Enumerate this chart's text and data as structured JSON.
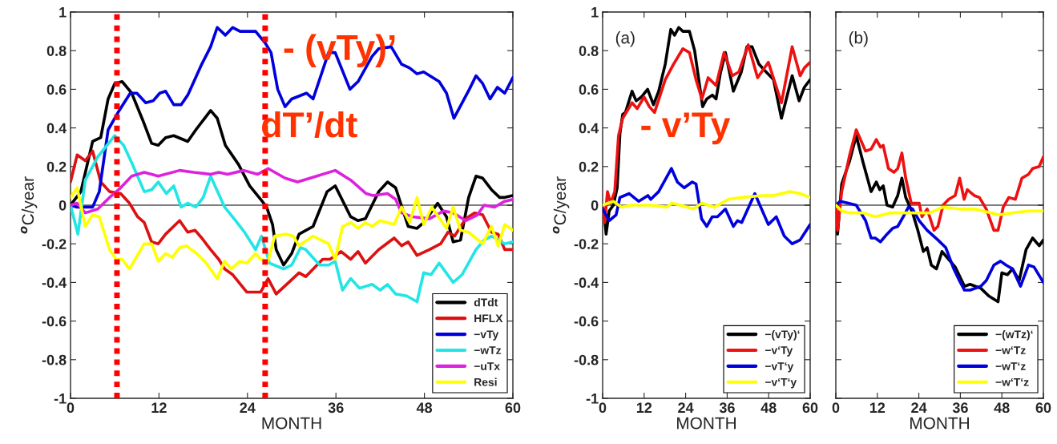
{
  "chart_data": [
    {
      "type": "line",
      "xlabel": "MONTH",
      "ylabel": "$^{o}$C/year",
      "xlim": [
        0,
        60
      ],
      "xticks": [
        0,
        12,
        24,
        36,
        48,
        60
      ],
      "ylim": [
        -1,
        1
      ],
      "yticks": [
        -1,
        -0.8,
        -0.6,
        -0.4,
        -0.2,
        0,
        0.2,
        0.4,
        0.6,
        0.8,
        1
      ],
      "legend": "bottom right",
      "grid": false,
      "ref_lines": [
        {
          "axis": "y",
          "value": 0,
          "color": "#000000",
          "line_style": "solid"
        },
        {
          "axis": "x",
          "value": 6.3,
          "color": "#ff0000",
          "line_style": "dotted"
        },
        {
          "axis": "x",
          "value": 26.4,
          "color": "#ff0000",
          "line_style": "dotted"
        }
      ],
      "annotations": [
        "- (vTy)’",
        "dT’/dt"
      ],
      "series": [
        {
          "name": "dTdt",
          "color": "#000000",
          "x": [
            0,
            1.4,
            3,
            4.1,
            5.1,
            6,
            7,
            8.3,
            9.8,
            11,
            11.9,
            12.9,
            14,
            15.9,
            17,
            19,
            19.9,
            21,
            22.8,
            24.3,
            25.8,
            26.6,
            27.4,
            27.9,
            28.9,
            30,
            31,
            32.9,
            34.8,
            35.9,
            38,
            39,
            40,
            41.8,
            43,
            44.1,
            45.8,
            47,
            47.9,
            49.8,
            51,
            51.9,
            52.9,
            54,
            55,
            55.9,
            57.1,
            58.2,
            58.9,
            60
          ],
          "values": [
            0,
            0.07,
            0.33,
            0.35,
            0.55,
            0.63,
            0.64,
            0.58,
            0.44,
            0.32,
            0.31,
            0.35,
            0.36,
            0.33,
            0.39,
            0.49,
            0.45,
            0.31,
            0.21,
            0.1,
            0.03,
            -0.01,
            -0.1,
            -0.23,
            -0.31,
            -0.25,
            -0.15,
            -0.11,
            0.07,
            0.1,
            -0.06,
            -0.08,
            -0.07,
            0.07,
            0.12,
            0.09,
            -0.11,
            -0.12,
            -0.09,
            0.01,
            -0.06,
            -0.19,
            -0.18,
            0.04,
            0.15,
            0.14,
            0.08,
            0.04,
            0.04,
            0.05
          ]
        },
        {
          "name": "HFLX",
          "color": "#dd1111",
          "x": [
            0,
            0.9,
            2,
            3,
            4.1,
            5.3,
            6.8,
            8,
            9.1,
            10,
            11,
            11.9,
            12.9,
            14.8,
            15.9,
            16.9,
            17.8,
            19,
            20.1,
            20.9,
            22,
            23.9,
            25.8,
            26.8,
            27.9,
            29.6,
            31,
            31.9,
            34.2,
            35.2,
            36.7,
            38,
            39,
            40,
            41.8,
            43.9,
            44.9,
            45.8,
            47,
            48.7,
            50.2,
            51.2,
            52.1,
            53.6,
            54.8,
            55.9,
            57.1,
            58,
            58.9,
            60
          ],
          "values": [
            0.12,
            0.26,
            0.23,
            0.28,
            0.12,
            0.07,
            0.06,
            0.01,
            -0.06,
            -0.09,
            -0.19,
            -0.2,
            -0.15,
            -0.08,
            -0.14,
            -0.13,
            -0.17,
            -0.23,
            -0.28,
            -0.33,
            -0.36,
            -0.45,
            -0.45,
            -0.38,
            -0.46,
            -0.4,
            -0.35,
            -0.37,
            -0.28,
            -0.28,
            -0.24,
            -0.28,
            -0.24,
            -0.3,
            -0.23,
            -0.17,
            -0.21,
            -0.19,
            -0.26,
            -0.23,
            -0.2,
            -0.14,
            -0.16,
            -0.07,
            -0.04,
            -0.05,
            -0.14,
            -0.15,
            -0.23,
            -0.23
          ]
        },
        {
          "name": "−vTy",
          "color": "#0000dd",
          "x": [
            0,
            0.9,
            2,
            3,
            3.9,
            5.1,
            6.6,
            8.1,
            9,
            10.2,
            11.2,
            12.1,
            12.9,
            14,
            15,
            15.9,
            17.8,
            19,
            19.9,
            21,
            22,
            23,
            25.1,
            26.4,
            27.2,
            28.1,
            29.1,
            30,
            32,
            32.9,
            35,
            35.9,
            37.9,
            39,
            40.9,
            41.8,
            43.5,
            44.9,
            46,
            47,
            47.9,
            50,
            51,
            52,
            54.1,
            55,
            55.9,
            56.9,
            57.9,
            58.9,
            60
          ],
          "values": [
            0,
            -0.01,
            -0.01,
            -0.01,
            0.07,
            0.39,
            0.49,
            0.58,
            0.58,
            0.53,
            0.54,
            0.58,
            0.59,
            0.52,
            0.52,
            0.57,
            0.73,
            0.82,
            0.92,
            0.88,
            0.92,
            0.9,
            0.9,
            0.84,
            0.79,
            0.6,
            0.51,
            0.55,
            0.58,
            0.55,
            0.79,
            0.79,
            0.6,
            0.64,
            0.77,
            0.81,
            0.82,
            0.73,
            0.71,
            0.68,
            0.69,
            0.64,
            0.58,
            0.45,
            0.6,
            0.67,
            0.63,
            0.55,
            0.61,
            0.58,
            0.66
          ]
        },
        {
          "name": "−wTz",
          "color": "#22e5e5",
          "x": [
            0,
            1,
            2,
            3.7,
            6,
            7.2,
            8.3,
            10,
            11,
            11.9,
            13,
            14,
            15,
            15.9,
            17,
            18,
            19,
            20.9,
            22.4,
            23.6,
            25.1,
            25.9,
            27,
            28.9,
            30,
            31.2,
            31.9,
            33.8,
            35,
            35.9,
            36.9,
            38,
            39.2,
            40.9,
            42,
            43,
            44.1,
            45.6,
            47,
            47.9,
            48.9,
            50,
            51.9,
            53.1,
            55,
            56.1,
            57.1,
            58.9,
            60
          ],
          "values": [
            0,
            -0.15,
            0.13,
            0.25,
            0.36,
            0.31,
            0.22,
            0.07,
            0.08,
            0.12,
            0.06,
            0.1,
            -0.01,
            0.01,
            -0.01,
            0.04,
            0.15,
            -0.01,
            -0.08,
            -0.14,
            -0.23,
            -0.16,
            -0.3,
            -0.33,
            -0.31,
            -0.22,
            -0.23,
            -0.31,
            -0.31,
            -0.29,
            -0.44,
            -0.38,
            -0.43,
            -0.41,
            -0.44,
            -0.41,
            -0.46,
            -0.47,
            -0.5,
            -0.35,
            -0.36,
            -0.3,
            -0.4,
            -0.36,
            -0.23,
            -0.18,
            -0.16,
            -0.2,
            -0.19
          ]
        },
        {
          "name": "−uTx",
          "color": "#dd22dd",
          "x": [
            0,
            0.9,
            2,
            3.7,
            5.3,
            6.8,
            8.3,
            10,
            11.9,
            14.8,
            16.7,
            19,
            20.1,
            21.3,
            23.5,
            25.4,
            26.8,
            29.1,
            30.8,
            33.4,
            35.9,
            38,
            40.1,
            41,
            43,
            44.1,
            44.9,
            46.4,
            48.7,
            50.6,
            51.9,
            53.6,
            55.2,
            56.1,
            57.5,
            58.9,
            60
          ],
          "values": [
            0,
            0.01,
            -0.04,
            -0.02,
            0.04,
            0.09,
            0.15,
            0.17,
            0.15,
            0.18,
            0.17,
            0.16,
            0.17,
            0.16,
            0.18,
            0.16,
            0.19,
            0.14,
            0.12,
            0.15,
            0.18,
            0.13,
            0.06,
            0.05,
            0.06,
            0.03,
            -0.04,
            -0.06,
            -0.07,
            -0.03,
            -0.04,
            -0.08,
            -0.05,
            0,
            -0.01,
            0.02,
            0.03
          ]
        },
        {
          "name": "Resi",
          "color": "#ffff00",
          "x": [
            0,
            0.9,
            2,
            3,
            3.9,
            5.3,
            6.2,
            7,
            8,
            10,
            11,
            11.9,
            12.9,
            13.8,
            14.8,
            15.7,
            17.1,
            18.2,
            19.9,
            20.9,
            21.8,
            23,
            23.9,
            25.1,
            25.8,
            26.8,
            27.7,
            29.3,
            30.2,
            31,
            32.9,
            35,
            35.9,
            36.9,
            38,
            39,
            40,
            40.9,
            42,
            43.9,
            44.9,
            46,
            47,
            47.9,
            49,
            51,
            51.9,
            52.9,
            54,
            55.9,
            57.1,
            58,
            58.9,
            60
          ],
          "values": [
            0.04,
            0.09,
            -0.11,
            -0.05,
            -0.06,
            -0.23,
            -0.28,
            -0.28,
            -0.33,
            -0.2,
            -0.2,
            -0.29,
            -0.25,
            -0.27,
            -0.22,
            -0.21,
            -0.25,
            -0.29,
            -0.38,
            -0.29,
            -0.33,
            -0.29,
            -0.3,
            -0.25,
            -0.28,
            -0.29,
            -0.16,
            -0.15,
            -0.16,
            -0.21,
            -0.16,
            -0.2,
            -0.28,
            -0.11,
            -0.09,
            -0.12,
            -0.09,
            -0.11,
            -0.08,
            -0.1,
            -0.01,
            -0.09,
            0.04,
            -0.1,
            -0.01,
            -0.12,
            -0.01,
            -0.13,
            -0.14,
            -0.2,
            -0.11,
            -0.21,
            -0.1,
            -0.13
          ]
        }
      ]
    },
    {
      "type": "line",
      "xlabel": "MONTH",
      "ylabel": "$^{o}$C/year",
      "xlim": [
        0,
        60
      ],
      "xticks": [
        0,
        12,
        24,
        36,
        48,
        60
      ],
      "ylim": [
        -1,
        1
      ],
      "yticks": [
        -1,
        -0.8,
        -0.6,
        -0.4,
        -0.2,
        0,
        0.2,
        0.4,
        0.6,
        0.8,
        1
      ],
      "legend": "bottom right",
      "grid": false,
      "ref_lines": [
        {
          "axis": "y",
          "value": 0,
          "color": "#000000",
          "line_style": "solid"
        }
      ],
      "annotations": [
        "(a)",
        "- v’Ty"
      ],
      "series": [
        {
          "name": "−(vTy)‘",
          "color": "#000000",
          "x": [
            0,
            0.6,
            1,
            1.9,
            3.1,
            4.2,
            5,
            5.8,
            6.6,
            8.5,
            9.7,
            11.2,
            13,
            14.7,
            16.2,
            18.1,
            19.7,
            20.8,
            22,
            23.2,
            25.1,
            26.6,
            28.9,
            30.1,
            31.7,
            32.8,
            34,
            35.5,
            37.8,
            40.1,
            41.7,
            43.2,
            45.2,
            46.7,
            49.4,
            51.7,
            54.8,
            56.8,
            58.3,
            60
          ],
          "values": [
            0,
            -0.07,
            -0.15,
            -0.03,
            0,
            0.09,
            0.37,
            0.47,
            0.48,
            0.59,
            0.54,
            0.56,
            0.6,
            0.52,
            0.59,
            0.73,
            0.91,
            0.88,
            0.92,
            0.9,
            0.9,
            0.8,
            0.51,
            0.55,
            0.57,
            0.55,
            0.68,
            0.79,
            0.59,
            0.69,
            0.82,
            0.82,
            0.73,
            0.7,
            0.65,
            0.45,
            0.67,
            0.54,
            0.61,
            0.65
          ]
        },
        {
          "name": "−v‘Ty",
          "color": "#ee1111",
          "x": [
            0,
            0.6,
            1.4,
            2.3,
            3.5,
            4.6,
            5.8,
            8.5,
            10,
            12,
            13.5,
            15,
            18.1,
            20.5,
            23.2,
            25.1,
            27,
            28.7,
            30.5,
            32.8,
            35.1,
            37.5,
            39.4,
            42.1,
            44.8,
            47.9,
            51.7,
            54.8,
            57.1,
            58.3,
            60
          ],
          "values": [
            0,
            -0.09,
            0.07,
            0.01,
            0.07,
            0.36,
            0.45,
            0.53,
            0.5,
            0.56,
            0.51,
            0.48,
            0.65,
            0.73,
            0.81,
            0.79,
            0.65,
            0.55,
            0.66,
            0.62,
            0.79,
            0.67,
            0.69,
            0.83,
            0.66,
            0.74,
            0.53,
            0.82,
            0.67,
            0.71,
            0.74
          ]
        },
        {
          "name": "−vT‘y",
          "color": "#0000dd",
          "x": [
            0,
            1.9,
            3.9,
            5,
            7.7,
            10.4,
            13.1,
            13.9,
            16.2,
            19.9,
            21.6,
            23.6,
            25.9,
            27,
            28.6,
            30.1,
            31.7,
            33.2,
            35.5,
            37.8,
            39,
            40.2,
            44,
            47.9,
            50.2,
            52.5,
            54.8,
            57.1,
            60
          ],
          "values": [
            -0.02,
            -0.08,
            -0.05,
            0.04,
            0.06,
            0.02,
            0.05,
            0.03,
            0.07,
            0.19,
            0.12,
            0.09,
            0.12,
            0.11,
            -0.07,
            -0.11,
            -0.06,
            -0.06,
            -0.02,
            -0.11,
            -0.08,
            -0.09,
            0.06,
            -0.1,
            -0.06,
            -0.16,
            -0.2,
            -0.18,
            -0.1
          ]
        },
        {
          "name": "−v‘T‘y",
          "color": "#ffff00",
          "x": [
            0,
            3.1,
            5.4,
            8.5,
            13.9,
            18.5,
            20.1,
            22.4,
            26.3,
            28.6,
            32.4,
            36.3,
            40.2,
            46.3,
            49.4,
            54.1,
            57.1,
            60
          ],
          "values": [
            0,
            0.02,
            -0.01,
            0,
            0,
            -0.01,
            0.01,
            0,
            -0.02,
            0.01,
            -0.01,
            0.03,
            0.04,
            0.05,
            0.05,
            0.07,
            0.06,
            0.04
          ]
        }
      ]
    },
    {
      "type": "line",
      "xlabel": "MONTH",
      "xlim": [
        0,
        60
      ],
      "xticks": [
        0,
        12,
        24,
        36,
        48,
        60
      ],
      "ylim": [
        -1,
        1
      ],
      "yticks": [
        -1,
        -0.8,
        -0.6,
        -0.4,
        -0.2,
        0,
        0.2,
        0.4,
        0.6,
        0.8,
        1
      ],
      "legend": "bottom right",
      "grid": false,
      "tick_labels": "x",
      "ref_lines": [
        {
          "axis": "y",
          "value": 0,
          "color": "#000000",
          "line_style": "solid"
        }
      ],
      "annotations": [
        "(b)"
      ],
      "series": [
        {
          "name": "−(wTz)‘",
          "color": "#000000",
          "x": [
            0,
            0.5,
            1.7,
            4,
            5.9,
            7.9,
            10.2,
            11.7,
            12.7,
            13.7,
            14.8,
            16.4,
            17.9,
            19.1,
            20.2,
            22.2,
            23.7,
            25.3,
            26.4,
            27.6,
            29.1,
            30.7,
            32.6,
            34.5,
            37.2,
            38.8,
            41.9,
            44.2,
            46.9,
            48,
            49.6,
            51.1,
            53,
            55,
            56.9,
            58.8,
            60
          ],
          "values": [
            0,
            -0.15,
            0.11,
            0.23,
            0.36,
            0.22,
            0.07,
            0.12,
            0.08,
            0.1,
            0,
            -0.01,
            0.05,
            0.14,
            0.04,
            -0.04,
            -0.13,
            -0.24,
            -0.22,
            -0.31,
            -0.33,
            -0.24,
            -0.28,
            -0.32,
            -0.42,
            -0.41,
            -0.43,
            -0.47,
            -0.5,
            -0.35,
            -0.36,
            -0.33,
            -0.39,
            -0.23,
            -0.17,
            -0.21,
            -0.18
          ]
        },
        {
          "name": "−w‘Tz",
          "color": "#ee1111",
          "x": [
            0,
            0.5,
            1.7,
            4,
            5.9,
            8.6,
            10.2,
            11.7,
            12.9,
            13.7,
            15.2,
            16.8,
            17.9,
            19.1,
            20.2,
            21.8,
            24.1,
            24.9,
            26.4,
            28.4,
            29.5,
            31,
            32.6,
            34.5,
            35.8,
            37.1,
            38,
            40,
            41.5,
            43.5,
            45.7,
            46.9,
            48.4,
            50,
            51.9,
            53.8,
            55.7,
            56.9,
            58.8,
            60
          ],
          "values": [
            0,
            -0.13,
            0.07,
            0.26,
            0.39,
            0.28,
            0.29,
            0.34,
            0.3,
            0.31,
            0.19,
            0.17,
            0.19,
            0.27,
            0.14,
            0.01,
            0.01,
            -0.06,
            -0.02,
            -0.13,
            -0.11,
            0,
            0.03,
            0.05,
            0.14,
            0.03,
            0.08,
            0.05,
            0.04,
            -0.02,
            -0.13,
            -0.13,
            -0.01,
            0.04,
            0.03,
            0.14,
            0.16,
            0.19,
            0.2,
            0.25
          ]
        },
        {
          "name": "−wT‘z",
          "color": "#0000dd",
          "x": [
            0,
            1.3,
            3.6,
            5.9,
            8.6,
            10.2,
            11.4,
            12.9,
            14.8,
            16.4,
            17.9,
            19.5,
            21,
            22.2,
            24.1,
            26.4,
            29.5,
            31.8,
            34.1,
            35.7,
            37.2,
            38.8,
            41.9,
            43.5,
            45.7,
            47.6,
            49.2,
            51.1,
            53.4,
            55.7,
            57.3,
            60
          ],
          "values": [
            0,
            0.02,
            0.01,
            0,
            -0.08,
            -0.17,
            -0.17,
            -0.19,
            -0.15,
            -0.12,
            -0.11,
            -0.06,
            -0.01,
            -0.02,
            -0.08,
            -0.13,
            -0.18,
            -0.22,
            -0.33,
            -0.39,
            -0.44,
            -0.44,
            -0.42,
            -0.39,
            -0.31,
            -0.29,
            -0.31,
            -0.33,
            -0.42,
            -0.31,
            -0.32,
            -0.4
          ]
        },
        {
          "name": "−w‘T‘z",
          "color": "#ffff00",
          "x": [
            0,
            1.7,
            4,
            7.9,
            11.4,
            15.6,
            19.5,
            23.3,
            27.2,
            31,
            35.7,
            40.3,
            44.9,
            47.2,
            51.1,
            55.7,
            60
          ],
          "values": [
            0,
            -0.03,
            -0.04,
            -0.04,
            -0.06,
            -0.04,
            -0.04,
            -0.04,
            -0.04,
            -0.01,
            -0.02,
            -0.02,
            -0.04,
            -0.05,
            -0.04,
            -0.03,
            -0.03
          ]
        }
      ]
    }
  ]
}
